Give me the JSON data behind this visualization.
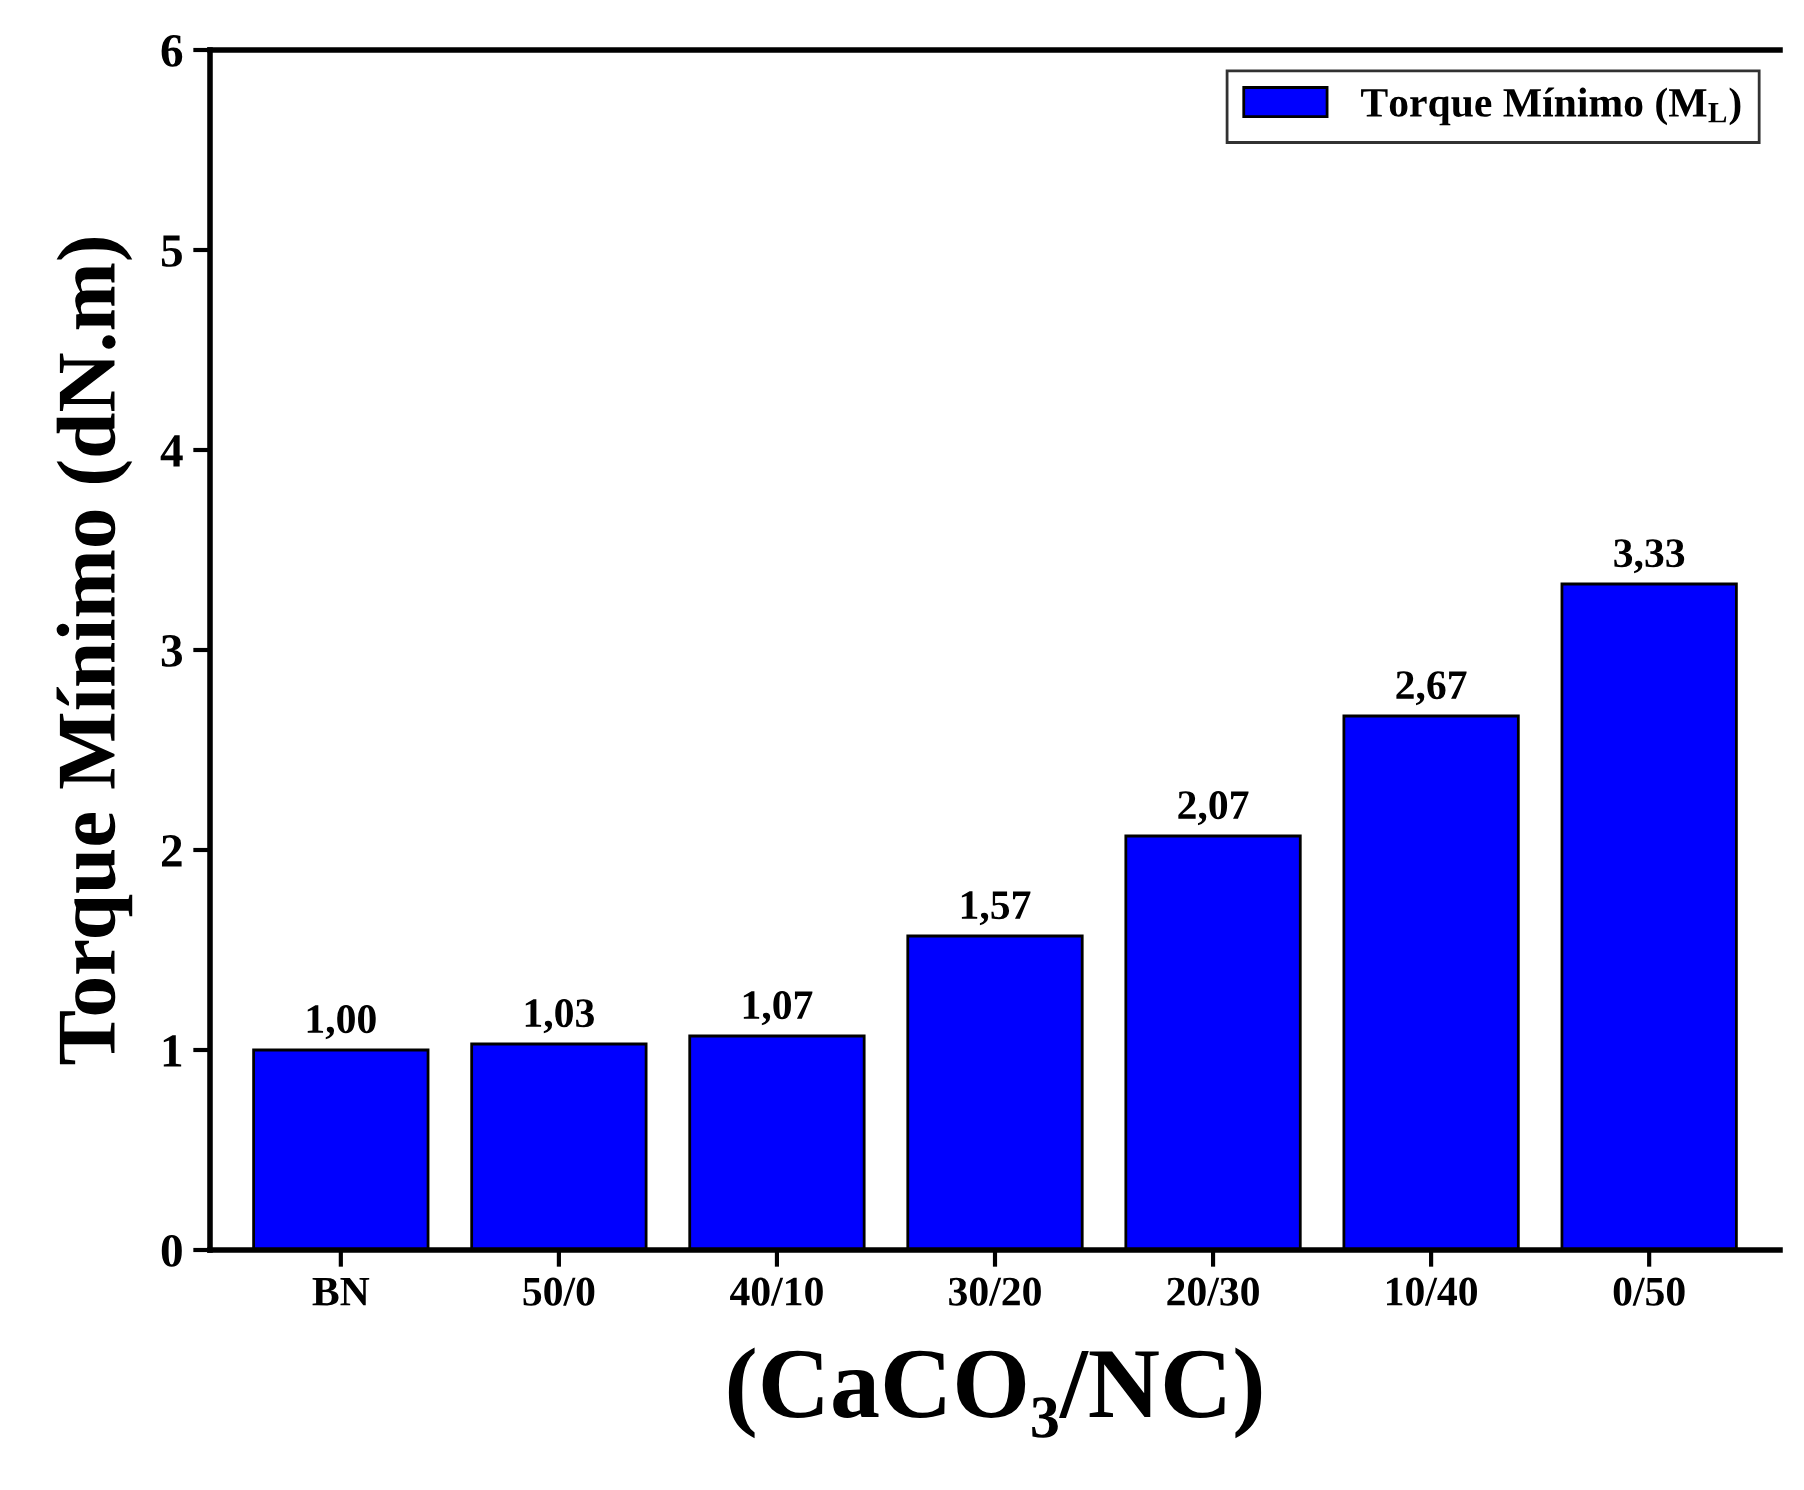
{
  "chart_data": {
    "type": "bar",
    "xlabel": "(CaCO₃/NC)",
    "ylabel": "Torque Mínimo (dN.m)",
    "categories": [
      "BN",
      "50/0",
      "40/10",
      "30/20",
      "20/30",
      "10/40",
      "0/50"
    ],
    "series": [
      {
        "name": "Torque Mínimo (M$_{L}$)",
        "color": "#0000ff",
        "values": [
          1.0,
          1.03,
          1.07,
          1.57,
          2.07,
          2.67,
          3.33
        ],
        "value_labels": [
          "1,00",
          "1,03",
          "1,07",
          "1,57",
          "2,07",
          "2,67",
          "3,33"
        ]
      }
    ],
    "ylim": [
      0,
      6
    ],
    "yticks": [
      0,
      1,
      2,
      3,
      4,
      5,
      6
    ],
    "legend": "top right",
    "grid": false
  }
}
